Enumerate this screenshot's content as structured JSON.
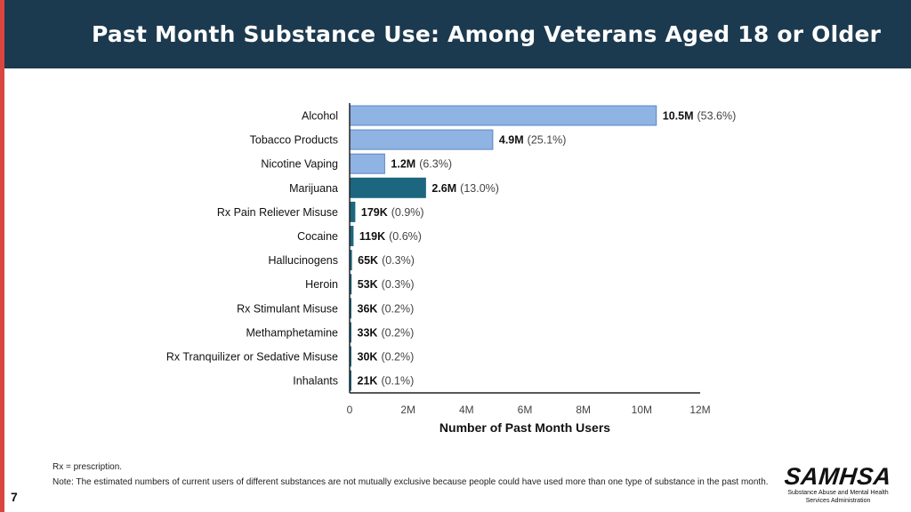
{
  "slide": {
    "title": "Past Month Substance Use: Among Veterans Aged 18 or Older",
    "page_number": "7"
  },
  "colors": {
    "header_bg": "#1c3a4f",
    "accent_stripe": "#d9453f",
    "light_bar": "#8fb3e3",
    "light_bar_stroke": "#5b86c4",
    "dark_bar": "#1d6680"
  },
  "chart_data": {
    "type": "bar",
    "orientation": "horizontal",
    "xlabel": "Number of Past Month Users",
    "xlim": [
      0,
      12000000
    ],
    "x_ticks": [
      {
        "value": 0,
        "label": "0"
      },
      {
        "value": 2000000,
        "label": "2M"
      },
      {
        "value": 4000000,
        "label": "4M"
      },
      {
        "value": 6000000,
        "label": "6M"
      },
      {
        "value": 8000000,
        "label": "8M"
      },
      {
        "value": 10000000,
        "label": "10M"
      },
      {
        "value": 12000000,
        "label": "12M"
      }
    ],
    "grid": false,
    "categories": [
      "Alcohol",
      "Tobacco Products",
      "Nicotine Vaping",
      "Marijuana",
      "Rx Pain Reliever Misuse",
      "Cocaine",
      "Hallucinogens",
      "Heroin",
      "Rx Stimulant Misuse",
      "Methamphetamine",
      "Rx Tranquilizer or Sedative Misuse",
      "Inhalants"
    ],
    "values": [
      10500000,
      4900000,
      1200000,
      2600000,
      179000,
      119000,
      65000,
      53000,
      36000,
      33000,
      30000,
      21000
    ],
    "value_labels": [
      "10.5M",
      "4.9M",
      "1.2M",
      "2.6M",
      "179K",
      "119K",
      "65K",
      "53K",
      "36K",
      "33K",
      "30K",
      "21K"
    ],
    "percent_labels": [
      "(53.6%)",
      "(25.1%)",
      "(6.3%)",
      "(13.0%)",
      "(0.9%)",
      "(0.6%)",
      "(0.3%)",
      "(0.3%)",
      "(0.2%)",
      "(0.2%)",
      "(0.2%)",
      "(0.1%)"
    ],
    "bar_color_group": [
      "light",
      "light",
      "light",
      "dark",
      "dark",
      "dark",
      "dark",
      "dark",
      "dark",
      "dark",
      "dark",
      "dark"
    ]
  },
  "footnotes": {
    "rx": "Rx = prescription.",
    "note": "Note: The estimated numbers of current users of different substances are not mutually exclusive because people could have used more than one type of substance in the past month."
  },
  "logo": {
    "wordmark": "SAMHSA",
    "line1": "Substance Abuse and Mental Health",
    "line2": "Services Administration"
  }
}
